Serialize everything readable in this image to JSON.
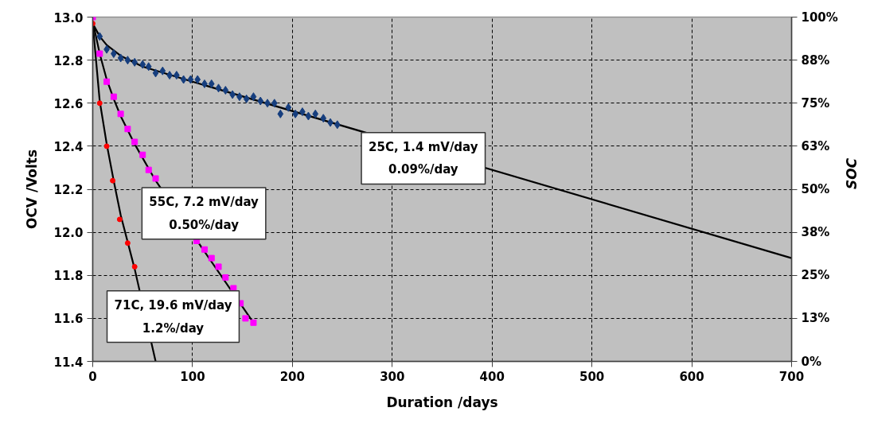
{
  "chart_data": {
    "type": "scatter",
    "xlabel": "Duration /days",
    "ylabel": "OCV /Volts",
    "y2label": "SOC",
    "xlim": [
      0,
      700
    ],
    "xticks": [
      0,
      100,
      200,
      300,
      400,
      500,
      600,
      700
    ],
    "ylim": [
      11.4,
      13.0
    ],
    "yticks": [
      11.4,
      11.6,
      11.8,
      {
        "value": 12.0,
        "label": "12.0"
      },
      12.2,
      12.4,
      12.6,
      12.8,
      {
        "value": 13.0,
        "label": "13.0"
      }
    ],
    "y2lim": [
      0,
      100
    ],
    "y2ticks": [
      {
        "value": 0,
        "label": "0%"
      },
      {
        "value": 12.5,
        "label": "13%"
      },
      {
        "value": 25,
        "label": "25%"
      },
      {
        "value": 37.5,
        "label": "38%"
      },
      {
        "value": 50,
        "label": "50%"
      },
      {
        "value": 62.5,
        "label": "63%"
      },
      {
        "value": 75,
        "label": "75%"
      },
      {
        "value": 87.5,
        "label": "88%"
      },
      {
        "value": 100,
        "label": "100%"
      }
    ],
    "grid": true,
    "series": [
      {
        "type": "line",
        "color": "#000000",
        "x": [
          0,
          7,
          14,
          28,
          50,
          100,
          700
        ],
        "values": [
          12.97,
          12.91,
          12.87,
          12.82,
          12.77,
          12.7,
          11.88
        ]
      },
      {
        "type": "line",
        "color": "#000000",
        "x": [
          0,
          7,
          14,
          21,
          28,
          42,
          63,
          161
        ],
        "values": [
          12.98,
          12.83,
          12.71,
          12.62,
          12.54,
          12.41,
          12.24,
          11.58
        ]
      },
      {
        "type": "line",
        "color": "#000000",
        "x": [
          0,
          7,
          14,
          21,
          28,
          42,
          63
        ],
        "values": [
          12.97,
          12.61,
          12.41,
          12.24,
          12.08,
          11.83,
          11.4
        ]
      },
      {
        "marker": "diamond",
        "color": "#163e7e",
        "x": [
          7,
          14,
          21,
          28,
          35,
          42,
          50,
          56,
          63,
          70,
          77,
          84,
          91,
          98,
          105,
          112,
          119,
          126,
          133,
          140,
          147,
          154,
          161,
          168,
          175,
          182,
          188,
          196,
          203,
          210,
          216,
          223,
          231,
          238,
          245
        ],
        "values": [
          12.91,
          12.85,
          12.83,
          12.81,
          12.8,
          12.79,
          12.78,
          12.77,
          12.74,
          12.75,
          12.73,
          12.73,
          12.71,
          12.71,
          12.71,
          12.69,
          12.69,
          12.67,
          12.66,
          12.64,
          12.63,
          12.62,
          12.63,
          12.61,
          12.6,
          12.6,
          12.55,
          12.58,
          12.55,
          12.56,
          12.54,
          12.55,
          12.53,
          12.51,
          12.5
        ]
      },
      {
        "marker": "square",
        "color": "#ff00ff",
        "x": [
          0,
          7,
          14,
          21,
          28,
          35,
          42,
          50,
          56,
          63,
          104,
          112,
          119,
          126,
          133,
          141,
          148,
          153,
          161
        ],
        "values": [
          13.0,
          12.83,
          12.7,
          12.63,
          12.55,
          12.48,
          12.42,
          12.36,
          12.29,
          12.25,
          11.96,
          11.92,
          11.88,
          11.84,
          11.79,
          11.74,
          11.67,
          11.6,
          11.58
        ]
      },
      {
        "marker": "circle",
        "color": "#ff0000",
        "x": [
          0,
          7,
          14,
          20,
          27,
          35,
          42
        ],
        "values": [
          12.97,
          12.6,
          12.4,
          12.24,
          12.06,
          11.95,
          11.84
        ]
      }
    ],
    "annotations": [
      "25C, 1.4 mV/day\n0.09%/day",
      "55C, 7.2 mV/day\n0.50%/day",
      "71C, 19.6 mV/day\n1.2%/day"
    ]
  }
}
